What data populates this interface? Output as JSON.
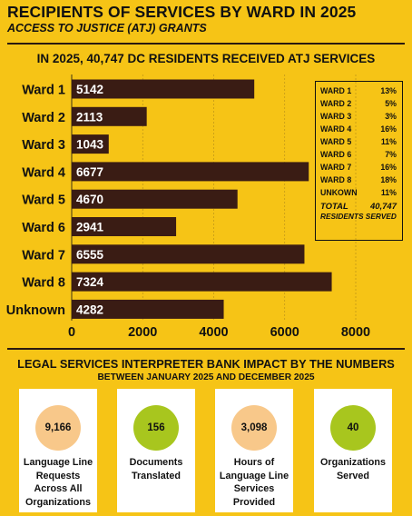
{
  "header": {
    "title": "RECIPIENTS OF SERVICES BY WARD IN 2025",
    "subtitle": "ACCESS TO JUSTICE (ATJ) GRANTS",
    "headline": "IN 2025, 40,747 DC RESIDENTS RECEIVED ATJ SERVICES"
  },
  "chart_data": {
    "type": "bar",
    "orientation": "horizontal",
    "categories": [
      "Ward 1",
      "Ward 2",
      "Ward 3",
      "Ward 4",
      "Ward 5",
      "Ward 6",
      "Ward 7",
      "Ward 8",
      "Unknown"
    ],
    "values": [
      5142,
      2113,
      1043,
      6677,
      4670,
      2941,
      6555,
      7324,
      4282
    ],
    "value_labels": [
      "5142",
      "2113",
      "1043",
      "6677",
      "4670",
      "2941",
      "6555",
      "7324",
      "4282"
    ],
    "xlim": [
      0,
      9000
    ],
    "x_ticks": [
      0,
      2000,
      4000,
      6000,
      8000
    ],
    "x_tick_labels": [
      "0",
      "2000",
      "4000",
      "6000",
      "8000"
    ],
    "bar_color": "#3A1C14",
    "label_color": "#FFFFFF",
    "grid": "vertical-dashed"
  },
  "legend": {
    "rows": [
      {
        "label": "WARD 1",
        "pct": "13%"
      },
      {
        "label": "WARD 2",
        "pct": "5%"
      },
      {
        "label": "WARD 3",
        "pct": "3%"
      },
      {
        "label": "WARD 4",
        "pct": "16%"
      },
      {
        "label": "WARD 5",
        "pct": "11%"
      },
      {
        "label": "WARD 6",
        "pct": "7%"
      },
      {
        "label": "WARD 7",
        "pct": "16%"
      },
      {
        "label": "WARD 8",
        "pct": "18%"
      },
      {
        "label": "UNKOWN",
        "pct": "11%"
      }
    ],
    "total_label": "TOTAL",
    "total_value": "40,747",
    "total_caption": "RESIDENTS SERVED"
  },
  "impact": {
    "title": "LEGAL SERVICES INTERPRETER BANK IMPACT BY THE NUMBERS",
    "subtitle": "BETWEEN JANUARY 2025 AND DECEMBER 2025",
    "cards": [
      {
        "value": "9,166",
        "label": "Language Line Requests Across All Organizations",
        "color": "#F8C88A"
      },
      {
        "value": "156",
        "label": "Documents Translated",
        "color": "#A8C61E"
      },
      {
        "value": "3,098",
        "label": "Hours of Language Line Services Provided",
        "color": "#F8C88A"
      },
      {
        "value": "40",
        "label": "Organizations Served",
        "color": "#A8C61E"
      }
    ]
  },
  "colors": {
    "background": "#F6C416",
    "text": "#111111",
    "card_bg": "#FFFFFF"
  }
}
